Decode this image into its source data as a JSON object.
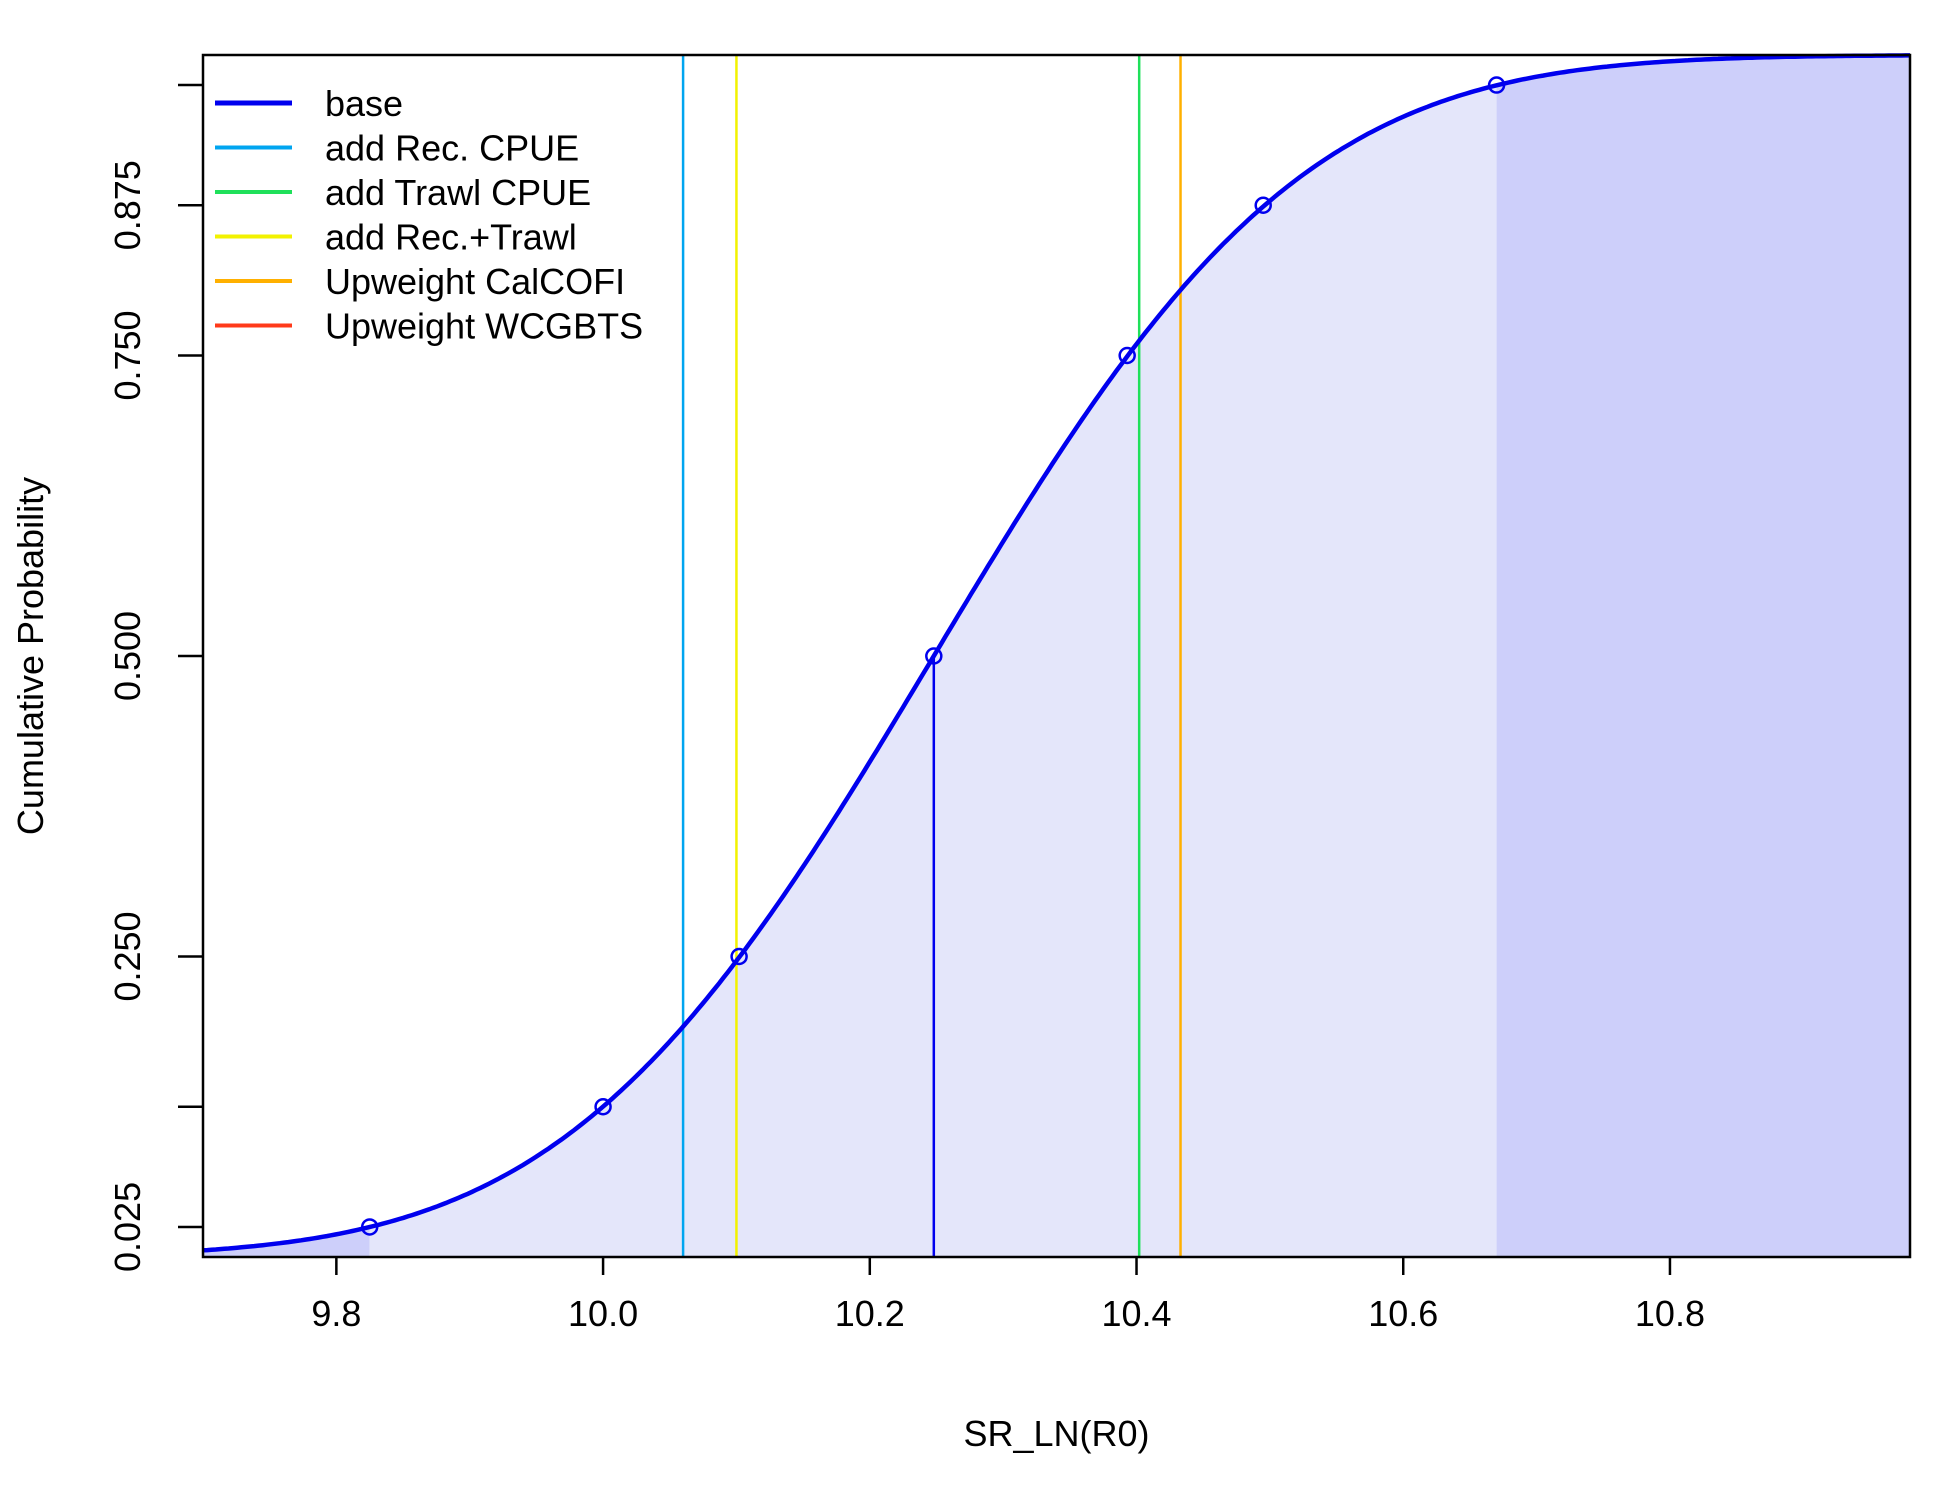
{
  "chart_data": {
    "type": "line",
    "title": "",
    "xlabel": "SR_LN(R0)",
    "ylabel": "Cumulative Probability",
    "xlim": [
      9.7,
      10.98
    ],
    "ylim": [
      0.0,
      1.0
    ],
    "x_ticks": [
      9.8,
      10.0,
      10.2,
      10.4,
      10.6,
      10.8
    ],
    "x_tick_labels": [
      "9.8",
      "10.0",
      "10.2",
      "10.4",
      "10.6",
      "10.8"
    ],
    "y_ticks": [
      0.025,
      0.125,
      0.25,
      0.5,
      0.75,
      0.875,
      0.975
    ],
    "y_tick_labels": [
      "0.025",
      "",
      "0.250",
      "0.500",
      "0.750",
      "0.875",
      ""
    ],
    "grid": false,
    "legend_position": "top-left",
    "series": [
      {
        "name": "base",
        "color": "#0000EE",
        "style": "cdf-curve",
        "mean": 10.248,
        "sd": 0.2157,
        "quantile_points": [
          {
            "p": 0.025,
            "x": 9.825
          },
          {
            "p": 0.125,
            "x": 10.0
          },
          {
            "p": 0.25,
            "x": 10.102
          },
          {
            "p": 0.5,
            "x": 10.248
          },
          {
            "p": 0.75,
            "x": 10.393
          },
          {
            "p": 0.875,
            "x": 10.495
          },
          {
            "p": 0.975,
            "x": 10.67
          }
        ],
        "median_line": 10.248
      },
      {
        "name": "add Rec. CPUE",
        "color": "#00A5F0",
        "style": "vertical-line",
        "x": 10.06
      },
      {
        "name": "add Trawl CPUE",
        "color": "#1FE05A",
        "style": "vertical-line",
        "x": 10.402
      },
      {
        "name": "add Rec.+Trawl",
        "color": "#F2F200",
        "style": "vertical-line",
        "x": 10.1
      },
      {
        "name": "Upweight CalCOFI",
        "color": "#FFB000",
        "style": "vertical-line",
        "x": 10.433
      },
      {
        "name": "Upweight WCGBTS",
        "color": "#FF3A1A",
        "style": "vertical-line",
        "x": null
      }
    ],
    "shading": {
      "light_color": "#E4E6FA",
      "dark_color": "#CDCFFA",
      "interval_lower": 9.825,
      "interval_upper": 10.67
    }
  }
}
